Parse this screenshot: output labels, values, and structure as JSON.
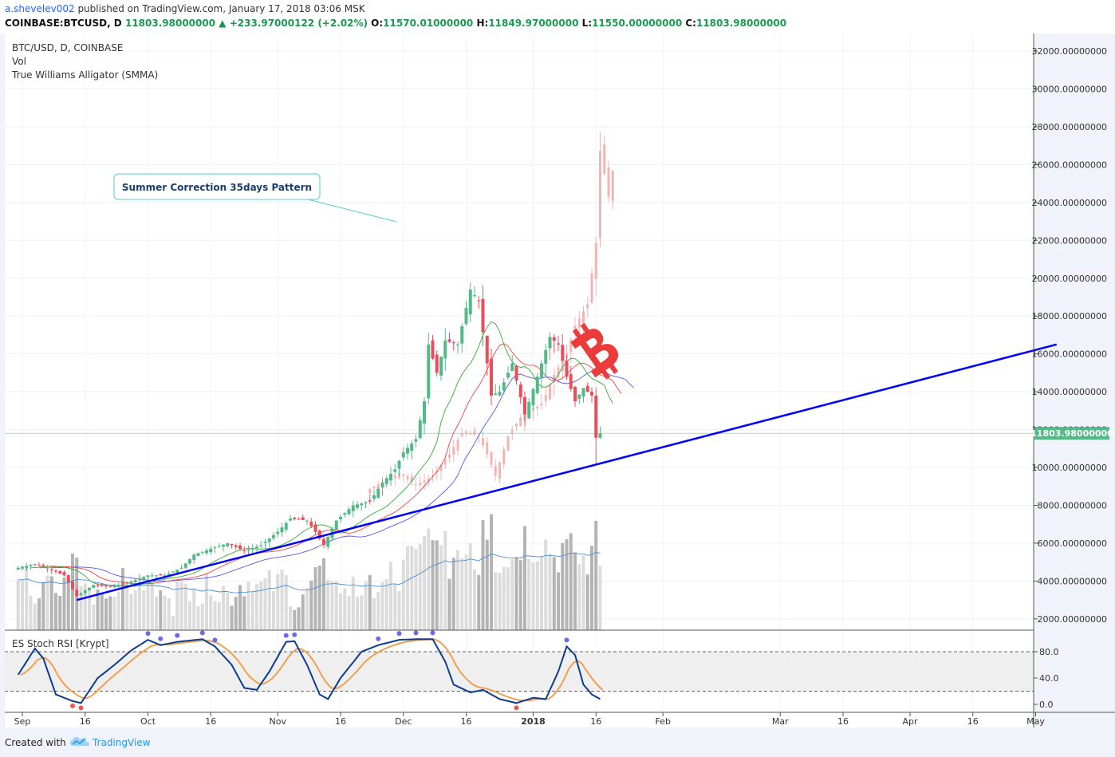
{
  "header": {
    "user": "a.shevelev002",
    "published": " published on TradingView.com, January 17, 2018 03:06 MSK",
    "symbol": "COINBASE:BTCUSD, D",
    "last": "11803.98000000",
    "change": "+233.97000122 (+2.02%)",
    "o_label": "O:",
    "o_value": "11570.01000000",
    "h_label": "H:",
    "h_value": "11849.97000000",
    "l_label": "L:",
    "l_value": "11550.00000000",
    "c_label": "C:",
    "c_value": "11803.98000000"
  },
  "legend": {
    "symbol": "BTC/USD, D, COINBASE",
    "vol": "Vol",
    "alligator": "True Williams Alligator (SMMA)",
    "stoch": "ES Stoch RSI [Krypt]"
  },
  "annotation": {
    "text": "Summer Correction 35days Pattern"
  },
  "last_price_label": "11803.98000000",
  "footer": {
    "created": "Created with",
    "brand": "TradingView"
  },
  "colors": {
    "up": "#53b987",
    "down": "#eb4d5c",
    "ghost": "#f5b4b4",
    "trendline": "#0000ff",
    "vol": "#b4b4b4",
    "vol_light": "#dcdcdc",
    "stoch_k": "#0d3c91",
    "stoch_d": "#f0a050",
    "alligator_jaw": "#5555ee",
    "alligator_teeth": "#ee4444",
    "alligator_lips": "#33aa33",
    "vol_ma": "#4a90d9"
  },
  "chart_data": [
    {
      "type": "candlestick",
      "title": "BTC/USD, D, COINBASE",
      "yaxis_labels": [
        "32000.00000000",
        "30000.00000000",
        "28000.00000000",
        "26000.00000000",
        "24000.00000000",
        "22000.00000000",
        "20000.00000000",
        "18000.00000000",
        "16000.00000000",
        "14000.00000000",
        "12000.00000000",
        "10000.00000000",
        "8000.00000000",
        "6000.00000000",
        "4000.00000000",
        "2000.00000000"
      ],
      "ylim": [
        1000,
        33200
      ],
      "xaxis_labels": [
        "Sep",
        "16",
        "Oct",
        "16",
        "Nov",
        "16",
        "Dec",
        "16",
        "2018",
        "16",
        "Feb",
        "Mar",
        "16",
        "Apr",
        "16",
        "May"
      ],
      "xaxis_dates": [
        "2017-09-01",
        "2017-09-16",
        "2017-10-01",
        "2017-10-16",
        "2017-11-01",
        "2017-11-16",
        "2017-12-01",
        "2017-12-16",
        "2018-01-01",
        "2018-01-16",
        "2018-02-01",
        "2018-03-01",
        "2018-03-16",
        "2018-04-01",
        "2018-04-16",
        "2018-05-01"
      ],
      "last_price": 11803.98,
      "trendline": {
        "points": [
          [
            "2017-09-14",
            3000
          ],
          [
            "2018-05-06",
            16500
          ]
        ]
      },
      "close_keypoints": [
        [
          "2017-08-31",
          4700
        ],
        [
          "2017-09-04",
          4900
        ],
        [
          "2017-09-08",
          4600
        ],
        [
          "2017-09-11",
          4300
        ],
        [
          "2017-09-14",
          3200
        ],
        [
          "2017-09-18",
          3800
        ],
        [
          "2017-09-22",
          3700
        ],
        [
          "2017-09-26",
          3900
        ],
        [
          "2017-10-01",
          4300
        ],
        [
          "2017-10-05",
          4300
        ],
        [
          "2017-10-09",
          4700
        ],
        [
          "2017-10-12",
          5400
        ],
        [
          "2017-10-16",
          5700
        ],
        [
          "2017-10-20",
          6000
        ],
        [
          "2017-10-24",
          5600
        ],
        [
          "2017-10-28",
          5900
        ],
        [
          "2017-11-01",
          6600
        ],
        [
          "2017-11-04",
          7300
        ],
        [
          "2017-11-08",
          7200
        ],
        [
          "2017-11-10",
          6600
        ],
        [
          "2017-11-12",
          5900
        ],
        [
          "2017-11-15",
          7200
        ],
        [
          "2017-11-19",
          8000
        ],
        [
          "2017-11-23",
          8200
        ],
        [
          "2017-11-26",
          9200
        ],
        [
          "2017-11-29",
          9900
        ],
        [
          "2017-12-01",
          10800
        ],
        [
          "2017-12-04",
          11500
        ],
        [
          "2017-12-06",
          13500
        ],
        [
          "2017-12-07",
          16500
        ],
        [
          "2017-12-09",
          15000
        ],
        [
          "2017-12-11",
          16700
        ],
        [
          "2017-12-14",
          16500
        ],
        [
          "2017-12-17",
          19400
        ],
        [
          "2017-12-19",
          18800
        ],
        [
          "2017-12-21",
          15500
        ],
        [
          "2017-12-22",
          13800
        ],
        [
          "2017-12-24",
          14000
        ],
        [
          "2017-12-27",
          15500
        ],
        [
          "2017-12-30",
          12800
        ],
        [
          "2018-01-02",
          14800
        ],
        [
          "2018-01-05",
          16900
        ],
        [
          "2018-01-07",
          16500
        ],
        [
          "2018-01-09",
          14800
        ],
        [
          "2018-01-11",
          13500
        ],
        [
          "2018-01-13",
          14200
        ],
        [
          "2018-01-15",
          13800
        ],
        [
          "2018-01-16",
          11570
        ],
        [
          "2018-01-17",
          11804
        ]
      ]
    },
    {
      "type": "bar",
      "title": "Vol"
    },
    {
      "type": "line",
      "title": "ES Stoch RSI [Krypt]",
      "yaxis_labels": [
        "80.0",
        "40.0",
        "0.0"
      ],
      "ylim": [
        -10,
        105
      ],
      "bands": [
        80,
        20
      ],
      "k_keypoints": [
        [
          "2017-08-31",
          45
        ],
        [
          "2017-09-04",
          85
        ],
        [
          "2017-09-06",
          70
        ],
        [
          "2017-09-09",
          15
        ],
        [
          "2017-09-13",
          5
        ],
        [
          "2017-09-15",
          2
        ],
        [
          "2017-09-19",
          40
        ],
        [
          "2017-09-23",
          60
        ],
        [
          "2017-09-27",
          82
        ],
        [
          "2017-10-01",
          98
        ],
        [
          "2017-10-04",
          90
        ],
        [
          "2017-10-08",
          95
        ],
        [
          "2017-10-14",
          99
        ],
        [
          "2017-10-17",
          88
        ],
        [
          "2017-10-21",
          60
        ],
        [
          "2017-10-24",
          25
        ],
        [
          "2017-10-27",
          22
        ],
        [
          "2017-10-30",
          50
        ],
        [
          "2017-11-03",
          95
        ],
        [
          "2017-11-05",
          96
        ],
        [
          "2017-11-08",
          60
        ],
        [
          "2017-11-11",
          15
        ],
        [
          "2017-11-13",
          8
        ],
        [
          "2017-11-16",
          40
        ],
        [
          "2017-11-21",
          80
        ],
        [
          "2017-11-25",
          90
        ],
        [
          "2017-11-30",
          98
        ],
        [
          "2017-12-04",
          99
        ],
        [
          "2017-12-08",
          99
        ],
        [
          "2017-12-11",
          65
        ],
        [
          "2017-12-13",
          30
        ],
        [
          "2017-12-17",
          18
        ],
        [
          "2017-12-20",
          22
        ],
        [
          "2017-12-24",
          8
        ],
        [
          "2017-12-28",
          2
        ],
        [
          "2018-01-01",
          10
        ],
        [
          "2018-01-04",
          8
        ],
        [
          "2018-01-07",
          50
        ],
        [
          "2018-01-09",
          88
        ],
        [
          "2018-01-11",
          75
        ],
        [
          "2018-01-13",
          30
        ],
        [
          "2018-01-15",
          15
        ],
        [
          "2018-01-17",
          8
        ]
      ]
    }
  ]
}
